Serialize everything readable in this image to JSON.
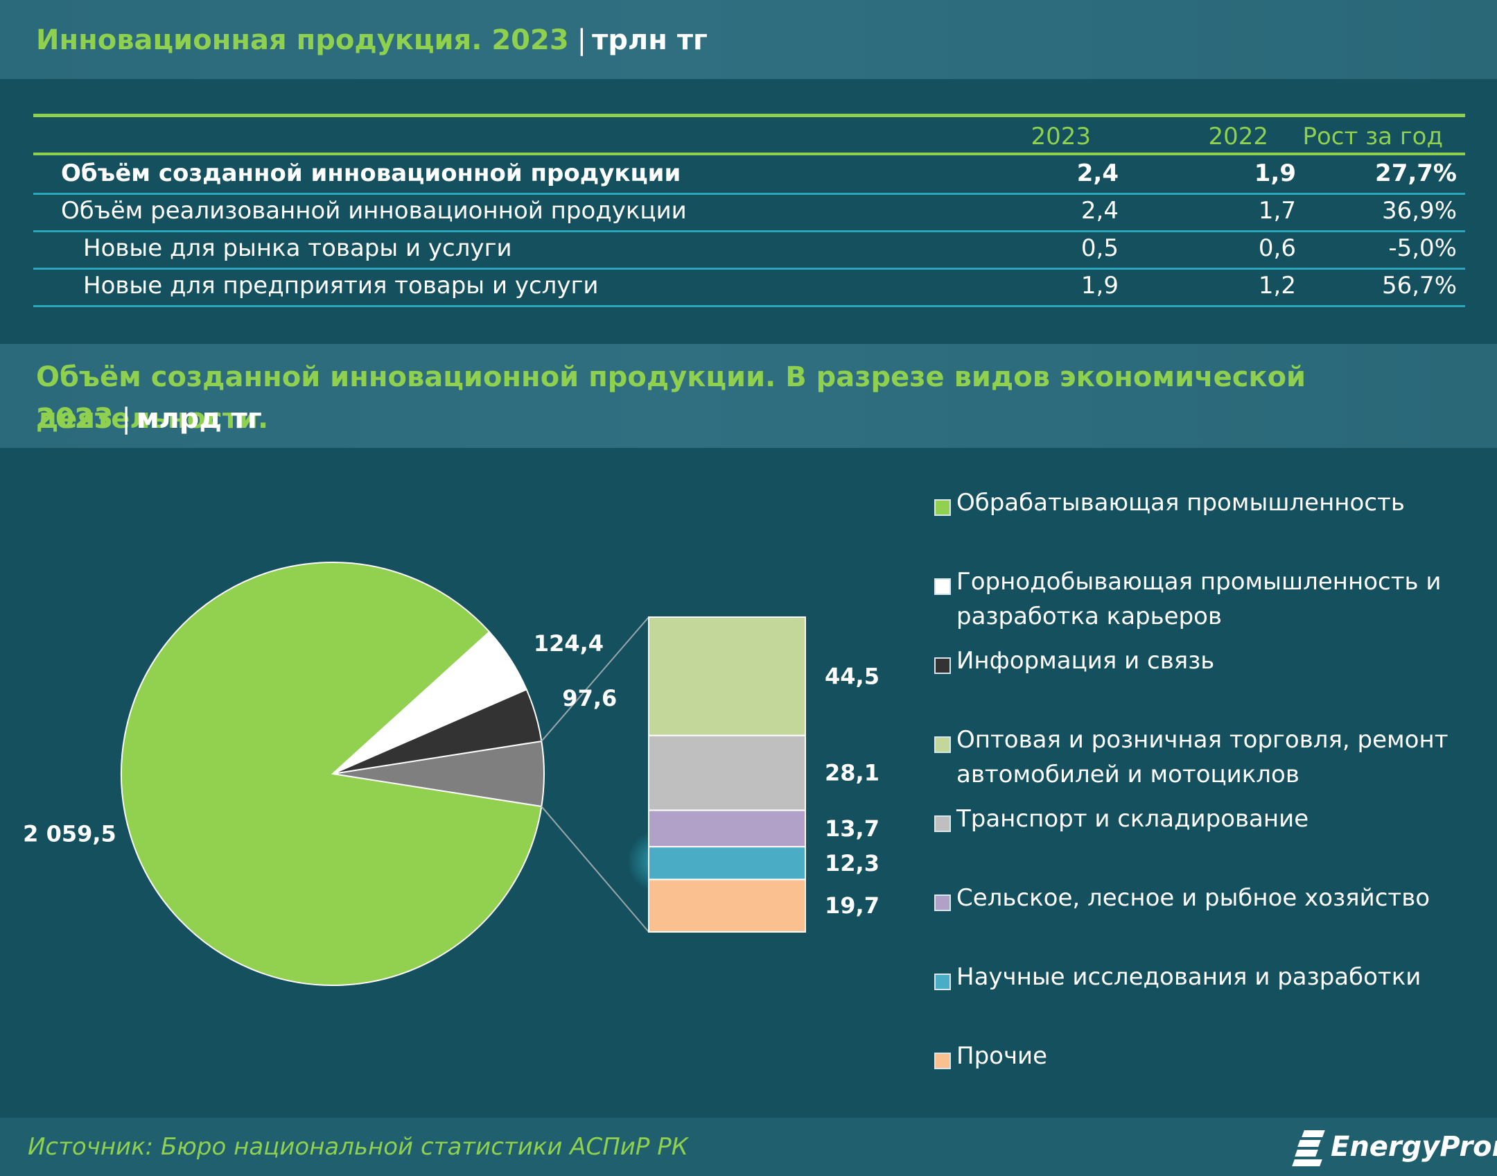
{
  "header1": {
    "title": "Инновационная продукция. 2023",
    "unit": "трлн тг"
  },
  "table": {
    "columns": [
      "2023",
      "2022",
      "Рост за год"
    ],
    "rows": [
      {
        "label": "Объём созданной инновационной продукции",
        "v2023": "2,4",
        "v2022": "1,9",
        "growth": "27,7%",
        "bold": true
      },
      {
        "label": "Объём реализованной инновационной продукции",
        "v2023": "2,4",
        "v2022": "1,7",
        "growth": "36,9%"
      },
      {
        "label": "Новые для рынка товары и услуги",
        "v2023": "0,5",
        "v2022": "0,6",
        "growth": "-5,0%"
      },
      {
        "label": "Новые для предприятия товары и услуги",
        "v2023": "1,9",
        "v2022": "1,2",
        "growth": "56,7%"
      }
    ]
  },
  "header2": {
    "title_line1": "Объём созданной инновационной продукции. В разрезе видов экономической деятельности.",
    "title_line2": "2023",
    "unit": "млрд тг"
  },
  "chart_data": {
    "type": "pie",
    "subtype": "pie-of-pie (bar of pie)",
    "main_slices": [
      {
        "label": "Обрабатывающая промышленность",
        "value": 2059.5,
        "value_label": "2 059,5",
        "color": "#92d050"
      },
      {
        "label": "Горнодобывающая промышленность и разработка карьеров",
        "value": 124.4,
        "value_label": "124,4",
        "color": "#ffffff"
      },
      {
        "label": "Информация и связь",
        "value": 97.6,
        "value_label": "97,6",
        "color": "#333333"
      },
      {
        "label": "",
        "value": 118.3,
        "value_label": "",
        "color": "#7f7f7f",
        "breakdown": true
      }
    ],
    "breakdown": [
      {
        "label": "Оптовая и розничная торговля, ремонт автомобилей и мотоциклов",
        "value": 44.5,
        "value_label": "44,5",
        "color": "#c4d79b"
      },
      {
        "label": "Транспорт и складирование",
        "value": 28.1,
        "value_label": "28,1",
        "color": "#bfbfbf"
      },
      {
        "label": "Сельское, лесное и рыбное хозяйство",
        "value": 13.7,
        "value_label": "13,7",
        "color": "#b1a0c7"
      },
      {
        "label": "Научные исследования и разработки",
        "value": 12.3,
        "value_label": "12,3",
        "color": "#4bacc6"
      },
      {
        "label": "Прочие",
        "value": 19.7,
        "value_label": "19,7",
        "color": "#fac090"
      }
    ],
    "legend": [
      {
        "label": "Обрабатывающая промышленность",
        "color": "#92d050"
      },
      {
        "label": "Горнодобывающая промышленность и разработка карьеров",
        "color": "#ffffff"
      },
      {
        "label": "Информация и связь",
        "color": "#333333"
      },
      {
        "label": "Оптовая и розничная торговля, ремонт автомобилей и мотоциклов",
        "color": "#c4d79b"
      },
      {
        "label": "Транспорт и складирование",
        "color": "#bfbfbf"
      },
      {
        "label": "Сельское, лесное и рыбное хозяйство",
        "color": "#b1a0c7"
      },
      {
        "label": "Научные исследования и разработки",
        "color": "#4bacc6"
      },
      {
        "label": "Прочие",
        "color": "#fac090"
      }
    ],
    "legend_position": "right"
  },
  "footer": {
    "source": "Источник: Бюро национальной статистики АСПиР РК",
    "logo_text": "EnergyProm"
  },
  "colors": {
    "accent": "#8fd14f",
    "background": "#14505e",
    "band": "#2e6e7f",
    "divider": "#2aa7bb"
  }
}
